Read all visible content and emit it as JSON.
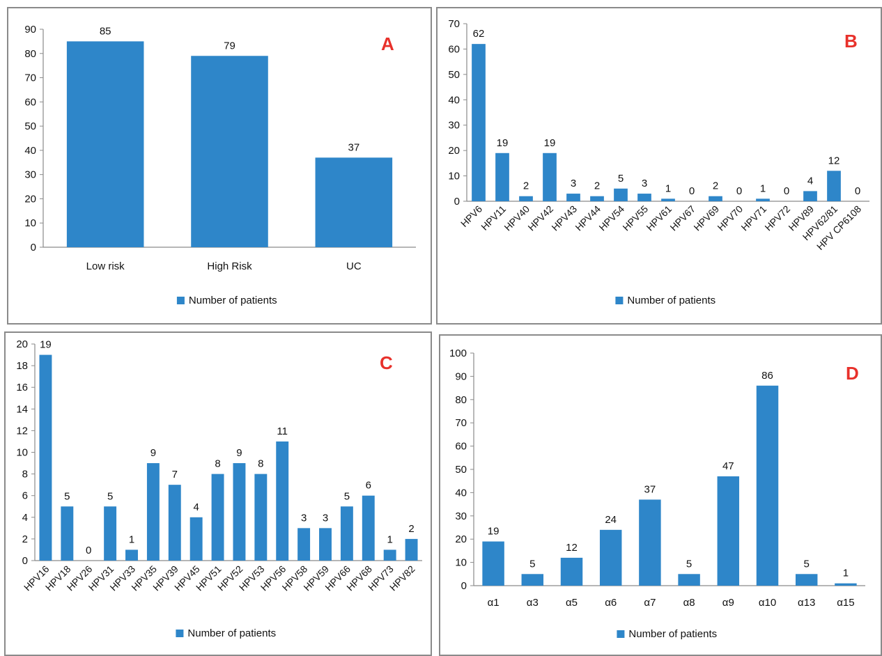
{
  "colors": {
    "bar": "#2e86c9",
    "panel_letter": "#e8312b",
    "axis": "#8a8a8a"
  },
  "chart_data": [
    {
      "type": "bar",
      "panel_label": "A",
      "categories": [
        "Low risk",
        "High Risk",
        "UC"
      ],
      "series": [
        {
          "name": "Number of patients",
          "values": [
            85,
            79,
            37
          ]
        }
      ],
      "data_labels": [
        "85",
        "79",
        "37"
      ],
      "ylim": [
        0,
        90
      ],
      "yticks": [
        "0",
        "10",
        "20",
        "30",
        "40",
        "50",
        "60",
        "70",
        "80",
        "90"
      ],
      "legend": "bottom",
      "grid": false,
      "xlabel": "",
      "ylabel": ""
    },
    {
      "type": "bar",
      "panel_label": "B",
      "categories": [
        "HPV6",
        "HPV11",
        "HPV40",
        "HPV42",
        "HPV43",
        "HPV44",
        "HPV54",
        "HPV55",
        "HPV61",
        "HPV67",
        "HPV69",
        "HPV70",
        "HPV71",
        "HPV72",
        "HPV89",
        "HPV62/81",
        "HPV CP6108"
      ],
      "series": [
        {
          "name": "Number of patients",
          "values": [
            62,
            19,
            2,
            19,
            3,
            2,
            5,
            3,
            1,
            0,
            2,
            0,
            1,
            0,
            4,
            12,
            0
          ]
        }
      ],
      "data_labels": [
        "62",
        "19",
        "2",
        "19",
        "3",
        "2",
        "5",
        "3",
        "1",
        "0",
        "2",
        "0",
        "1",
        "0",
        "4",
        "12",
        "0"
      ],
      "ylim": [
        0,
        70
      ],
      "yticks": [
        "0",
        "10",
        "20",
        "30",
        "40",
        "50",
        "60",
        "70"
      ],
      "legend": "bottom",
      "grid": false,
      "xlabel": "",
      "ylabel": ""
    },
    {
      "type": "bar",
      "panel_label": "C",
      "categories": [
        "HPV16",
        "HPV18",
        "HPV26",
        "HPV31",
        "HPV33",
        "HPV35",
        "HPV39",
        "HPV45",
        "HPV51",
        "HPV52",
        "HPV53",
        "HPV56",
        "HPV58",
        "HPV59",
        "HPV66",
        "HPV68",
        "HPV73",
        "HPV82"
      ],
      "series": [
        {
          "name": "Number of patients",
          "values": [
            19,
            5,
            0,
            5,
            1,
            9,
            7,
            4,
            8,
            9,
            8,
            11,
            3,
            3,
            5,
            6,
            1,
            2
          ]
        }
      ],
      "data_labels": [
        "19",
        "5",
        "0",
        "5",
        "1",
        "9",
        "7",
        "4",
        "8",
        "9",
        "8",
        "11",
        "3",
        "3",
        "5",
        "6",
        "1",
        "2"
      ],
      "ylim": [
        0,
        20
      ],
      "yticks": [
        "0",
        "2",
        "4",
        "6",
        "8",
        "10",
        "12",
        "14",
        "16",
        "18",
        "20"
      ],
      "legend": "bottom",
      "grid": false,
      "xlabel": "",
      "ylabel": ""
    },
    {
      "type": "bar",
      "panel_label": "D",
      "categories": [
        "α1",
        "α3",
        "α5",
        "α6",
        "α7",
        "α8",
        "α9",
        "α10",
        "α13",
        "α15"
      ],
      "series": [
        {
          "name": "Number of patients",
          "values": [
            19,
            5,
            12,
            24,
            37,
            5,
            47,
            86,
            5,
            1
          ]
        }
      ],
      "data_labels": [
        "19",
        "5",
        "12",
        "24",
        "37",
        "5",
        "47",
        "86",
        "5",
        "1"
      ],
      "ylim": [
        0,
        100
      ],
      "yticks": [
        "0",
        "10",
        "20",
        "30",
        "40",
        "50",
        "60",
        "70",
        "80",
        "90",
        "100"
      ],
      "legend": "bottom",
      "grid": false,
      "xlabel": "",
      "ylabel": ""
    }
  ]
}
